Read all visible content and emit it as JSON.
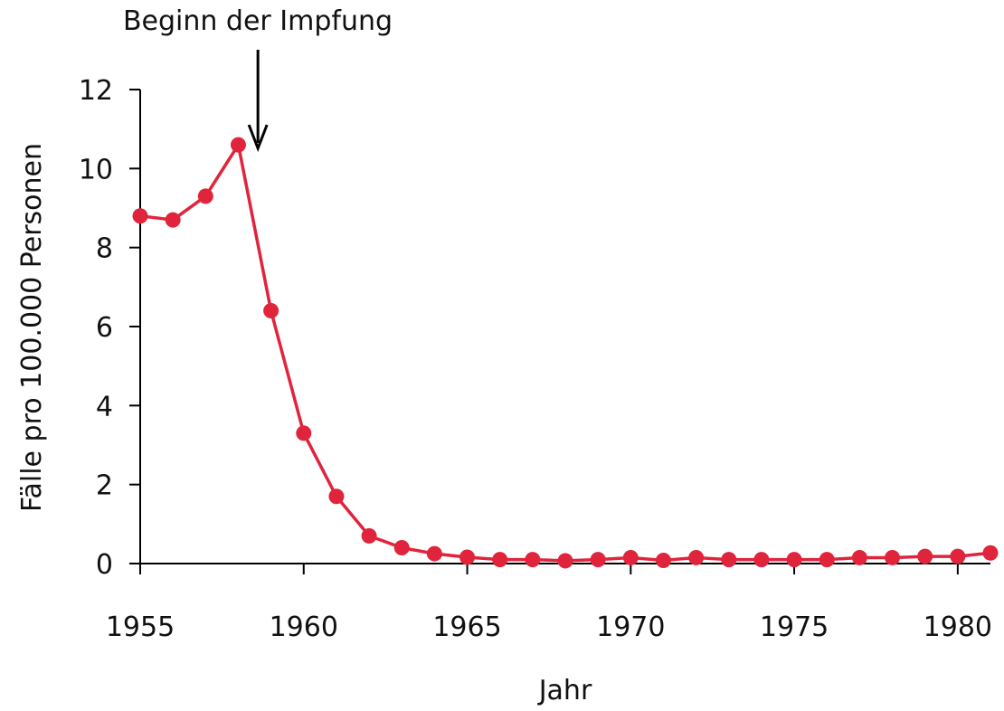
{
  "chart_data": {
    "type": "line",
    "title": "",
    "xlabel": "Jahr",
    "ylabel": "Fälle pro 100.000 Personen",
    "xlim": [
      1955,
      1981
    ],
    "ylim": [
      0,
      12
    ],
    "x_ticks": [
      1955,
      1960,
      1965,
      1970,
      1975,
      1980
    ],
    "y_ticks": [
      0,
      2,
      4,
      6,
      8,
      10,
      12
    ],
    "grid": false,
    "legend": "none",
    "series": [
      {
        "color": "#e0243c",
        "x": [
          1955,
          1956,
          1957,
          1958,
          1959,
          1960,
          1961,
          1962,
          1963,
          1964,
          1965,
          1966,
          1967,
          1968,
          1969,
          1970,
          1971,
          1972,
          1973,
          1974,
          1975,
          1976,
          1977,
          1978,
          1979,
          1980,
          1981
        ],
        "y": [
          8.8,
          8.7,
          9.3,
          10.6,
          6.4,
          3.3,
          1.7,
          0.7,
          0.4,
          0.25,
          0.16,
          0.1,
          0.1,
          0.07,
          0.1,
          0.15,
          0.08,
          0.15,
          0.1,
          0.1,
          0.1,
          0.1,
          0.15,
          0.15,
          0.18,
          0.18,
          0.27
        ]
      }
    ],
    "annotations": [
      {
        "text": "Beginn der Impfung",
        "x": 1958.6,
        "arrow": "down"
      }
    ]
  }
}
